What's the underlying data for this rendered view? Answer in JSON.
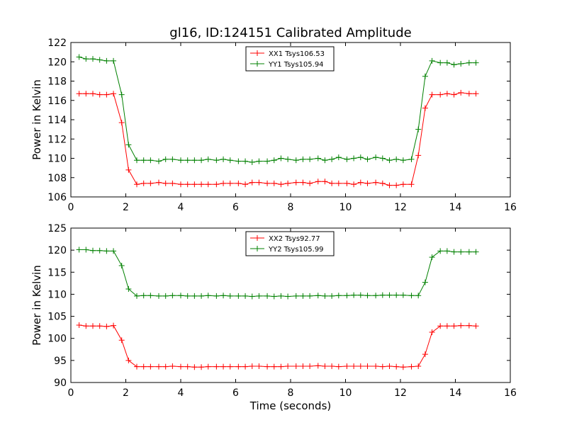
{
  "chart_data": [
    {
      "type": "line",
      "title": "gl16, ID:124151 Calibrated Amplitude",
      "xlabel": "",
      "ylabel": "Power in Kelvin",
      "xlim": [
        0,
        16
      ],
      "ylim": [
        106,
        122
      ],
      "xticks": [
        0,
        2,
        4,
        6,
        8,
        10,
        12,
        14,
        16
      ],
      "yticks": [
        106,
        108,
        110,
        112,
        114,
        116,
        118,
        120,
        122
      ],
      "legend_position": "top-center",
      "x": [
        0.3,
        0.55,
        0.8,
        1.05,
        1.3,
        1.55,
        1.85,
        2.1,
        2.4,
        2.65,
        2.9,
        3.2,
        3.45,
        3.7,
        4.0,
        4.25,
        4.5,
        4.75,
        5.0,
        5.3,
        5.55,
        5.8,
        6.1,
        6.35,
        6.6,
        6.85,
        7.15,
        7.4,
        7.65,
        7.9,
        8.2,
        8.45,
        8.7,
        9.0,
        9.25,
        9.5,
        9.75,
        10.05,
        10.3,
        10.55,
        10.8,
        11.1,
        11.35,
        11.6,
        11.85,
        12.1,
        12.4,
        12.65,
        12.9,
        13.15,
        13.45,
        13.7,
        13.95,
        14.2,
        14.5,
        14.75
      ],
      "series": [
        {
          "name": "XX1 Tsys106.53",
          "color": "#ff0000",
          "values": [
            116.7,
            116.7,
            116.7,
            116.6,
            116.6,
            116.7,
            113.7,
            108.8,
            107.3,
            107.4,
            107.4,
            107.5,
            107.4,
            107.4,
            107.3,
            107.3,
            107.3,
            107.3,
            107.3,
            107.3,
            107.4,
            107.4,
            107.4,
            107.3,
            107.5,
            107.5,
            107.4,
            107.4,
            107.3,
            107.4,
            107.5,
            107.5,
            107.4,
            107.6,
            107.6,
            107.4,
            107.4,
            107.4,
            107.3,
            107.5,
            107.4,
            107.5,
            107.4,
            107.2,
            107.2,
            107.3,
            107.3,
            110.3,
            115.2,
            116.6,
            116.6,
            116.7,
            116.6,
            116.8,
            116.7,
            116.7
          ]
        },
        {
          "name": "YY1 Tsys105.94",
          "color": "#008000",
          "values": [
            120.5,
            120.3,
            120.3,
            120.2,
            120.1,
            120.1,
            116.6,
            111.4,
            109.8,
            109.8,
            109.8,
            109.7,
            109.9,
            109.9,
            109.8,
            109.8,
            109.8,
            109.8,
            109.9,
            109.8,
            109.9,
            109.8,
            109.7,
            109.7,
            109.6,
            109.7,
            109.7,
            109.8,
            110.0,
            109.9,
            109.8,
            109.9,
            109.9,
            110.0,
            109.8,
            109.9,
            110.1,
            109.9,
            110.0,
            110.1,
            109.9,
            110.1,
            110.0,
            109.8,
            109.9,
            109.8,
            109.9,
            113.0,
            118.5,
            120.1,
            119.9,
            119.9,
            119.7,
            119.8,
            119.9,
            119.9
          ]
        }
      ]
    },
    {
      "type": "line",
      "title": "",
      "xlabel": "Time (seconds)",
      "ylabel": "Power in Kelvin",
      "xlim": [
        0,
        16
      ],
      "ylim": [
        90,
        125
      ],
      "xticks": [
        0,
        2,
        4,
        6,
        8,
        10,
        12,
        14,
        16
      ],
      "yticks": [
        90,
        95,
        100,
        105,
        110,
        115,
        120,
        125
      ],
      "legend_position": "top-center",
      "x": [
        0.3,
        0.55,
        0.8,
        1.05,
        1.3,
        1.55,
        1.85,
        2.1,
        2.4,
        2.65,
        2.9,
        3.2,
        3.45,
        3.7,
        4.0,
        4.25,
        4.5,
        4.75,
        5.0,
        5.3,
        5.55,
        5.8,
        6.1,
        6.35,
        6.6,
        6.85,
        7.15,
        7.4,
        7.65,
        7.9,
        8.2,
        8.45,
        8.7,
        9.0,
        9.25,
        9.5,
        9.75,
        10.05,
        10.3,
        10.55,
        10.8,
        11.1,
        11.35,
        11.6,
        11.85,
        12.1,
        12.4,
        12.65,
        12.9,
        13.15,
        13.45,
        13.7,
        13.95,
        14.2,
        14.5,
        14.75
      ],
      "series": [
        {
          "name": "XX2 Tsys92.77",
          "color": "#ff0000",
          "values": [
            103.0,
            102.8,
            102.8,
            102.8,
            102.7,
            102.9,
            99.6,
            95.0,
            93.6,
            93.6,
            93.6,
            93.6,
            93.6,
            93.7,
            93.6,
            93.6,
            93.5,
            93.5,
            93.6,
            93.6,
            93.6,
            93.6,
            93.6,
            93.6,
            93.7,
            93.7,
            93.6,
            93.6,
            93.6,
            93.7,
            93.7,
            93.7,
            93.7,
            93.8,
            93.7,
            93.7,
            93.6,
            93.7,
            93.7,
            93.7,
            93.7,
            93.7,
            93.6,
            93.7,
            93.6,
            93.5,
            93.6,
            93.7,
            96.4,
            101.4,
            102.8,
            102.8,
            102.8,
            102.9,
            102.9,
            102.8
          ]
        },
        {
          "name": "YY2 Tsys105.99",
          "color": "#008000",
          "values": [
            120.1,
            120.1,
            119.9,
            119.9,
            119.8,
            119.8,
            116.5,
            111.2,
            109.6,
            109.7,
            109.7,
            109.6,
            109.6,
            109.7,
            109.7,
            109.6,
            109.6,
            109.6,
            109.7,
            109.6,
            109.7,
            109.6,
            109.6,
            109.6,
            109.5,
            109.6,
            109.6,
            109.5,
            109.6,
            109.5,
            109.6,
            109.6,
            109.6,
            109.7,
            109.6,
            109.6,
            109.7,
            109.7,
            109.8,
            109.8,
            109.7,
            109.7,
            109.8,
            109.8,
            109.8,
            109.8,
            109.7,
            109.7,
            112.7,
            118.4,
            119.8,
            119.8,
            119.6,
            119.6,
            119.6,
            119.6
          ]
        }
      ]
    }
  ]
}
